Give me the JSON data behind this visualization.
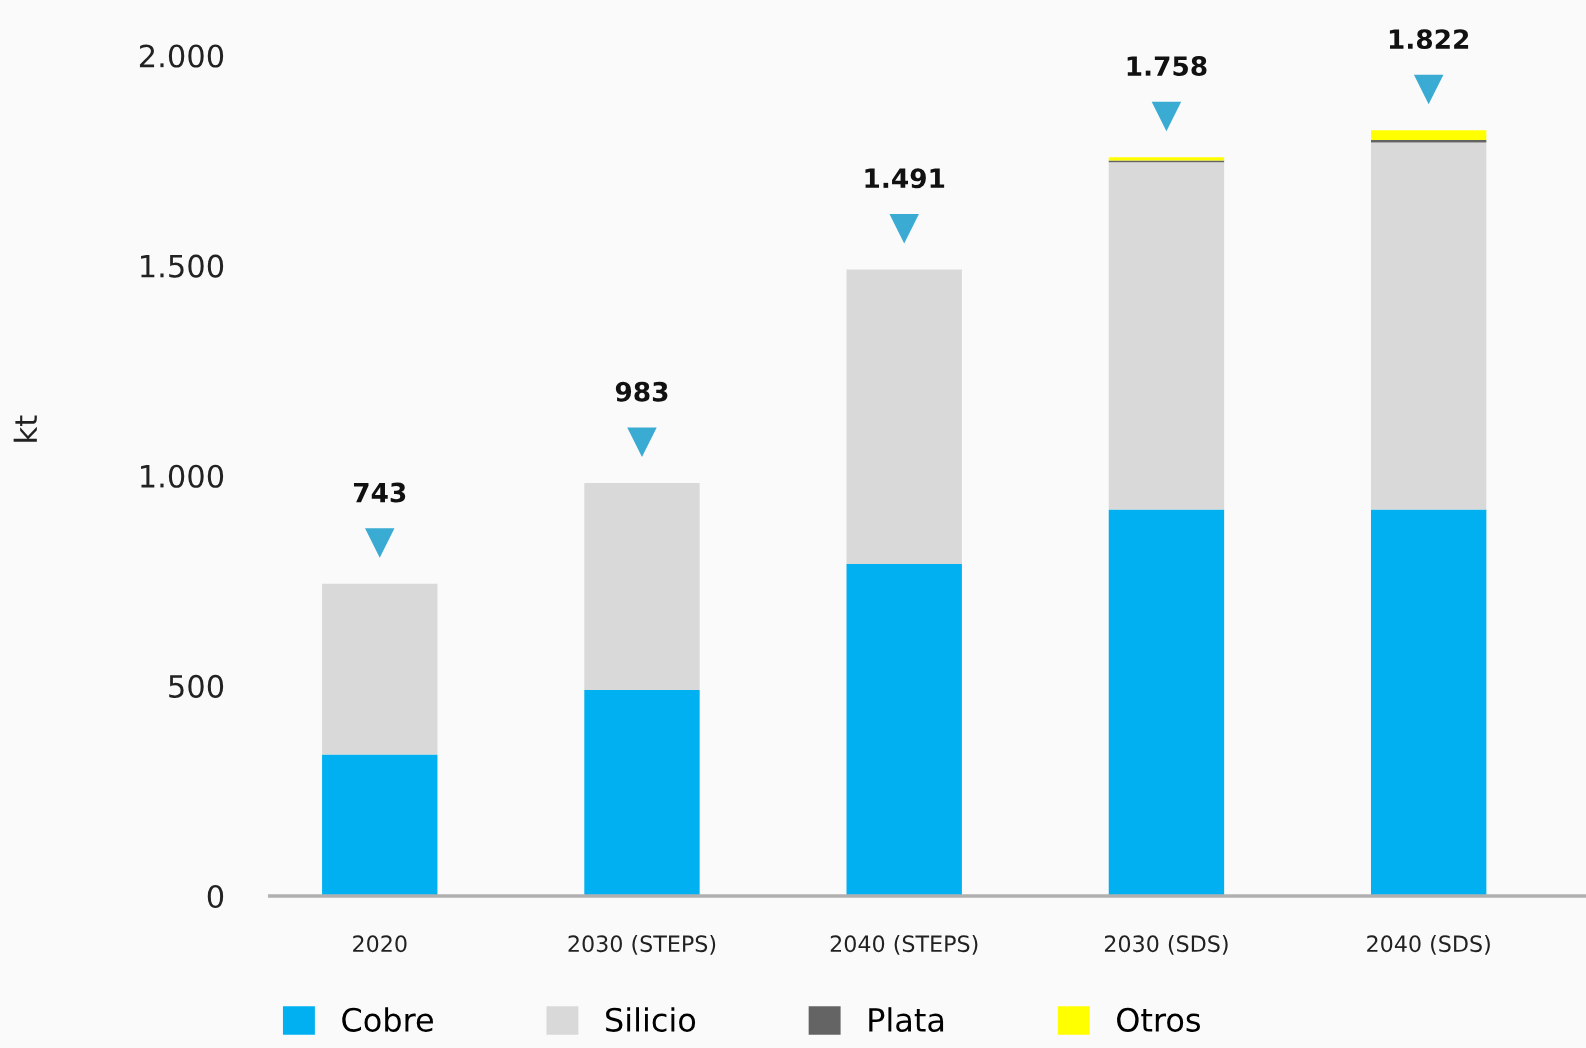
{
  "chart_data": {
    "type": "bar",
    "stacked": true,
    "ylabel": "kt",
    "categories": [
      "2020",
      "2030 (STEPS)",
      "2040 (STEPS)",
      "2030 (SDS)",
      "2040 (SDS)"
    ],
    "series": [
      {
        "name": "Cobre",
        "color": "#00b0f0",
        "values": [
          337,
          490,
          790,
          920,
          920
        ]
      },
      {
        "name": "Silicio",
        "color": "#d9d9d9",
        "values": [
          406,
          493,
          701,
          826,
          873
        ]
      },
      {
        "name": "Plata",
        "color": "#646464",
        "values": [
          null,
          null,
          null,
          4,
          6
        ]
      },
      {
        "name": "Otros",
        "color": "#ffff00",
        "values": [
          null,
          null,
          null,
          8,
          23
        ]
      }
    ],
    "ylim": [
      0,
      2000
    ],
    "yticks": [
      0,
      500,
      {
        "value": 1000,
        "label": "1.000"
      },
      {
        "value": 1500,
        "label": "1.500"
      },
      {
        "value": 2000,
        "label": "2.000"
      }
    ],
    "totals": [
      "743",
      "983",
      "1.491",
      "1.758",
      "1.822"
    ],
    "grid": false,
    "legend": "bottom"
  }
}
